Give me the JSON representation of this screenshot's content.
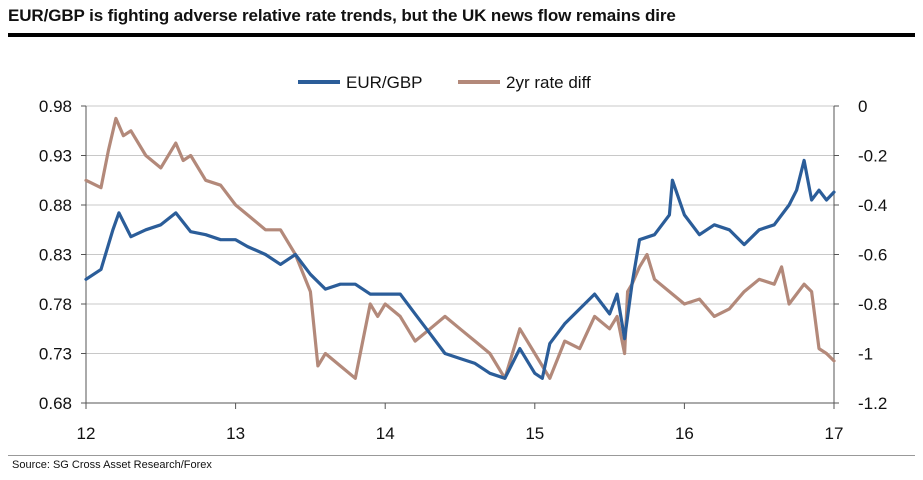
{
  "title": "EUR/GBP is fighting adverse relative rate trends, but the UK news flow remains dire",
  "source": "Source: SG Cross Asset Research/Forex",
  "colors": {
    "eurgbp": "#2b5d99",
    "ratediff": "#b3897a",
    "grid": "#c8c8c8",
    "axis": "#555555"
  },
  "chart_data": {
    "type": "line",
    "title": "EUR/GBP is fighting adverse relative rate trends, but the UK news flow remains dire",
    "x_ticks": [
      "12",
      "13",
      "14",
      "15",
      "16",
      "17"
    ],
    "xlim": [
      2012.0,
      2017.0
    ],
    "y_left": {
      "lim": [
        0.68,
        0.98
      ],
      "ticks": [
        "0.98",
        "0.93",
        "0.88",
        "0.83",
        "0.78",
        "0.73",
        "0.68"
      ]
    },
    "y_right": {
      "lim": [
        -1.2,
        0
      ],
      "ticks": [
        "0",
        "-0.2",
        "-0.4",
        "-0.6",
        "-0.8",
        "-1",
        "-1.2"
      ]
    },
    "legend": {
      "position": "top-center",
      "entries": [
        "EUR/GBP",
        "2yr rate diff"
      ]
    },
    "series": [
      {
        "name": "EUR/GBP",
        "axis": "left",
        "x": [
          2012.0,
          2012.1,
          2012.18,
          2012.22,
          2012.3,
          2012.4,
          2012.5,
          2012.6,
          2012.7,
          2012.8,
          2012.9,
          2013.0,
          2013.08,
          2013.2,
          2013.3,
          2013.4,
          2013.5,
          2013.6,
          2013.7,
          2013.8,
          2013.9,
          2014.0,
          2014.1,
          2014.2,
          2014.3,
          2014.4,
          2014.5,
          2014.6,
          2014.7,
          2014.8,
          2014.9,
          2015.0,
          2015.05,
          2015.1,
          2015.2,
          2015.3,
          2015.4,
          2015.5,
          2015.55,
          2015.6,
          2015.65,
          2015.7,
          2015.8,
          2015.9,
          2015.92,
          2016.0,
          2016.1,
          2016.2,
          2016.3,
          2016.4,
          2016.5,
          2016.6,
          2016.7,
          2016.75,
          2016.8,
          2016.85,
          2016.9,
          2016.95,
          2017.0
        ],
        "values": [
          0.805,
          0.815,
          0.855,
          0.872,
          0.848,
          0.855,
          0.86,
          0.872,
          0.853,
          0.85,
          0.845,
          0.845,
          0.838,
          0.83,
          0.82,
          0.83,
          0.81,
          0.795,
          0.8,
          0.8,
          0.79,
          0.79,
          0.79,
          0.77,
          0.75,
          0.73,
          0.725,
          0.72,
          0.71,
          0.705,
          0.735,
          0.71,
          0.705,
          0.74,
          0.76,
          0.775,
          0.79,
          0.77,
          0.79,
          0.745,
          0.8,
          0.845,
          0.85,
          0.87,
          0.905,
          0.87,
          0.85,
          0.86,
          0.855,
          0.84,
          0.855,
          0.86,
          0.88,
          0.895,
          0.925,
          0.885,
          0.895,
          0.885,
          0.893
        ]
      },
      {
        "name": "2yr rate diff",
        "axis": "right",
        "x": [
          2012.0,
          2012.1,
          2012.15,
          2012.2,
          2012.25,
          2012.3,
          2012.4,
          2012.5,
          2012.6,
          2012.65,
          2012.7,
          2012.8,
          2012.9,
          2013.0,
          2013.1,
          2013.2,
          2013.3,
          2013.4,
          2013.5,
          2013.55,
          2013.6,
          2013.7,
          2013.8,
          2013.9,
          2013.95,
          2014.0,
          2014.1,
          2014.2,
          2014.3,
          2014.4,
          2014.5,
          2014.6,
          2014.7,
          2014.8,
          2014.9,
          2015.0,
          2015.1,
          2015.2,
          2015.3,
          2015.4,
          2015.5,
          2015.55,
          2015.6,
          2015.62,
          2015.65,
          2015.7,
          2015.75,
          2015.8,
          2015.9,
          2016.0,
          2016.1,
          2016.2,
          2016.3,
          2016.4,
          2016.5,
          2016.6,
          2016.65,
          2016.7,
          2016.8,
          2016.85,
          2016.9,
          2016.95,
          2017.0
        ],
        "values": [
          -0.3,
          -0.33,
          -0.18,
          -0.05,
          -0.12,
          -0.1,
          -0.2,
          -0.25,
          -0.15,
          -0.22,
          -0.2,
          -0.3,
          -0.32,
          -0.4,
          -0.45,
          -0.5,
          -0.5,
          -0.6,
          -0.75,
          -1.05,
          -1.0,
          -1.05,
          -1.1,
          -0.8,
          -0.85,
          -0.8,
          -0.85,
          -0.95,
          -0.9,
          -0.85,
          -0.9,
          -0.95,
          -1.0,
          -1.1,
          -0.9,
          -1.0,
          -1.1,
          -0.95,
          -0.98,
          -0.85,
          -0.9,
          -0.85,
          -1.0,
          -0.75,
          -0.72,
          -0.65,
          -0.6,
          -0.7,
          -0.75,
          -0.8,
          -0.78,
          -0.85,
          -0.82,
          -0.75,
          -0.7,
          -0.72,
          -0.65,
          -0.8,
          -0.72,
          -0.75,
          -0.98,
          -1.0,
          -1.03
        ]
      }
    ]
  }
}
